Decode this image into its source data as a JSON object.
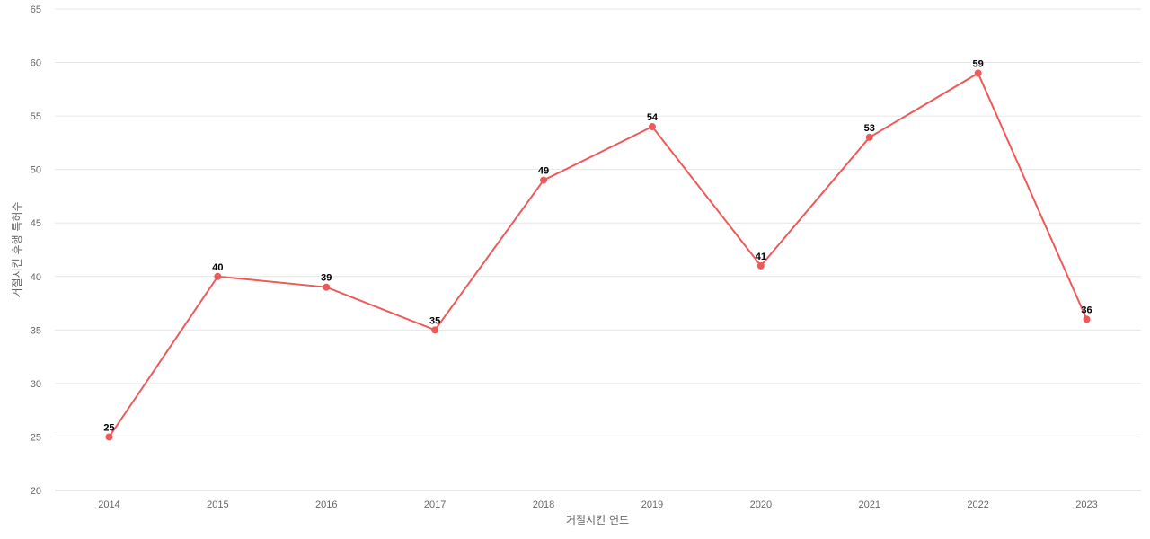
{
  "chart_data": {
    "type": "line",
    "title": "",
    "xlabel": "거절시킨 연도",
    "ylabel": "거절시킨 후행 특허수",
    "categories": [
      "2014",
      "2015",
      "2016",
      "2017",
      "2018",
      "2019",
      "2020",
      "2021",
      "2022",
      "2023"
    ],
    "series": [
      {
        "values": [
          25,
          40,
          39,
          35,
          49,
          54,
          41,
          53,
          59,
          36
        ],
        "color": "#ee5a5a"
      }
    ],
    "ylim": [
      20,
      65
    ],
    "yticks": [
      20,
      25,
      30,
      35,
      40,
      45,
      50,
      55,
      60,
      65
    ],
    "grid": true,
    "data_labels": true,
    "legend": "none"
  }
}
